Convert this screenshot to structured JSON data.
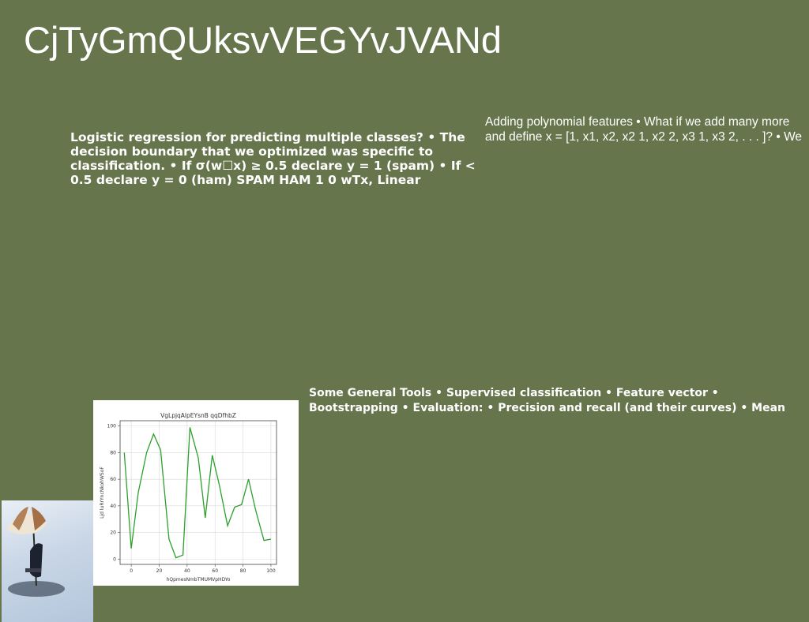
{
  "title": "CjTyGmQUksvVEGYvJVANd",
  "block1": "Logistic regression for predicting multiple classes? • The decision boundary that we optimized was specific to classification. • If σ(w⁠☐x) ≥ 0.5 declare y = 1 (spam) • If < 0.5 declare y = 0 (ham) SPAM HAM 1 0 wTx, Linear",
  "block2": "Adding polynomial features • What if we add many more and define x = [1, x1, x2, x2 1, x2 2, x3 1, x3 2, . . . ]? • We",
  "block3": "Some General Tools • Supervised classification • Feature vector • Bootstrapping • Evaluation: • Precision and recall (and their curves) • Mean",
  "colors": {
    "background": "#66754c",
    "line": "#2ca02c"
  },
  "chart_data": {
    "type": "line",
    "title": "VgLpjqAlpEYsnB qqDfhbZ",
    "xlabel": "hQpmesNmbTMUMVpHDYo",
    "ylabel": "Ljd luRrYncNkohWSoF",
    "xlim": [
      -8,
      104
    ],
    "ylim": [
      -4,
      104
    ],
    "xticks": [
      0,
      20,
      40,
      60,
      80,
      100
    ],
    "yticks": [
      0,
      20,
      40,
      60,
      80,
      100
    ],
    "grid": true,
    "series": [
      {
        "x": [
          -5,
          0,
          5,
          11,
          16,
          21,
          27,
          32,
          37,
          42,
          48,
          53,
          58,
          63,
          69,
          74,
          79,
          84,
          89,
          95,
          100
        ],
        "y": [
          80,
          8,
          50,
          80,
          94,
          82,
          15,
          1,
          3,
          99,
          76,
          31,
          78,
          56,
          25,
          39,
          41,
          60,
          37,
          14,
          15
        ]
      }
    ]
  }
}
